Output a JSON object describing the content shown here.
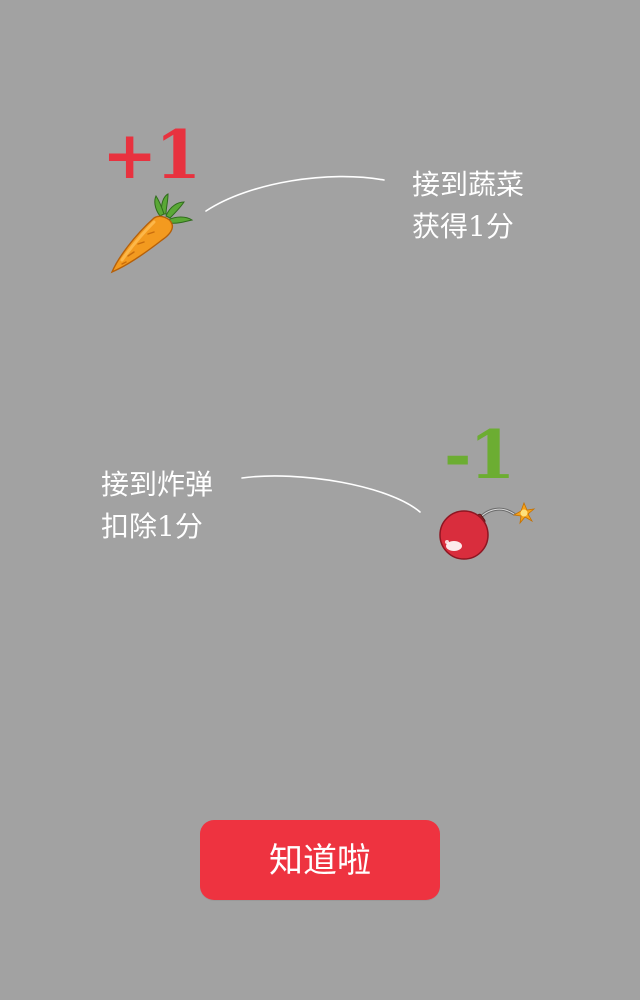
{
  "vegetable_rule": {
    "score_text": "+1",
    "score_color": "#e8323f",
    "line1": "接到蔬菜",
    "line2": "获得1分",
    "icon": "carrot-icon"
  },
  "bomb_rule": {
    "score_text": "-1",
    "score_color": "#6cad32",
    "line1": "接到炸弹",
    "line2": "扣除1分",
    "icon": "bomb-icon"
  },
  "confirm_button": {
    "label": "知道啦",
    "color": "#ee3340"
  },
  "background_color": "#a2a2a2"
}
